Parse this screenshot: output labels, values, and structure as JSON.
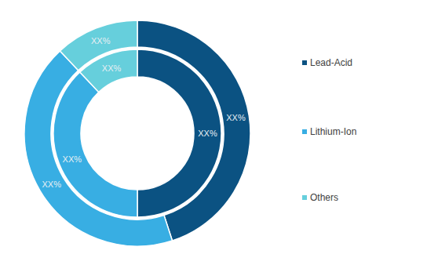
{
  "chart_data": {
    "type": "pie",
    "categories": [
      "Lead-Acid",
      "Lithium-Ion",
      "Others"
    ],
    "colors": [
      "#0b5282",
      "#38aee3",
      "#66cfdc"
    ],
    "series": [
      {
        "values": [
          50,
          38,
          12
        ],
        "value_labels": [
          "XX%",
          "XX%",
          "XX%"
        ]
      },
      {
        "values": [
          45,
          43,
          12
        ],
        "value_labels": [
          "XX%",
          "XX%",
          "XX%"
        ]
      }
    ],
    "data_labels": true,
    "legend": "right"
  }
}
